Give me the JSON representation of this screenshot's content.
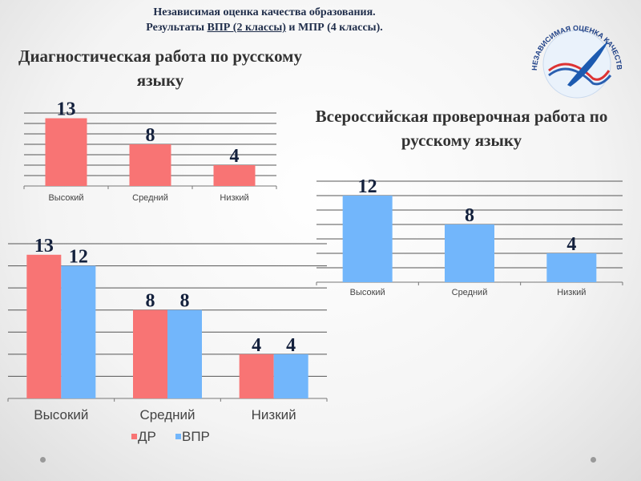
{
  "header": {
    "line1": "Независимая оценка качества образования.",
    "line2_pre": "Результаты ",
    "line2_link": "ВПР (2 классы)",
    "line2_post": " и МПР (4 классы)."
  },
  "logo": {
    "text": "НЕЗАВИСИМАЯ ОЦЕНКА КАЧЕСТВА ОБРАЗОВАНИЯ"
  },
  "colors": {
    "dr": "#f87474",
    "vpr": "#72b6fb",
    "label": "#14213d"
  },
  "chart_data": [
    {
      "type": "bar",
      "title": "Диагностическая работа по русскому языку",
      "categories": [
        "Высокий",
        "Средний",
        "Низкий"
      ],
      "series": [
        {
          "name": "ДР",
          "values": [
            13,
            8,
            4
          ]
        }
      ],
      "ylim": [
        0,
        14
      ],
      "grid": true,
      "legend": "none"
    },
    {
      "type": "bar",
      "title": "Всероссийская проверочная работа по русскому языку",
      "categories": [
        "Высокий",
        "Средний",
        "Низкий"
      ],
      "series": [
        {
          "name": "ВПР",
          "values": [
            12,
            8,
            4
          ]
        }
      ],
      "ylim": [
        0,
        14
      ],
      "grid": true,
      "legend": "none"
    },
    {
      "type": "bar",
      "title": "",
      "categories": [
        "Высокий",
        "Средний",
        "Низкий"
      ],
      "series": [
        {
          "name": "ДР",
          "values": [
            13,
            8,
            4
          ]
        },
        {
          "name": "ВПР",
          "values": [
            12,
            8,
            4
          ]
        }
      ],
      "ylim": [
        0,
        14
      ],
      "grid": true,
      "legend": "bottom"
    }
  ]
}
